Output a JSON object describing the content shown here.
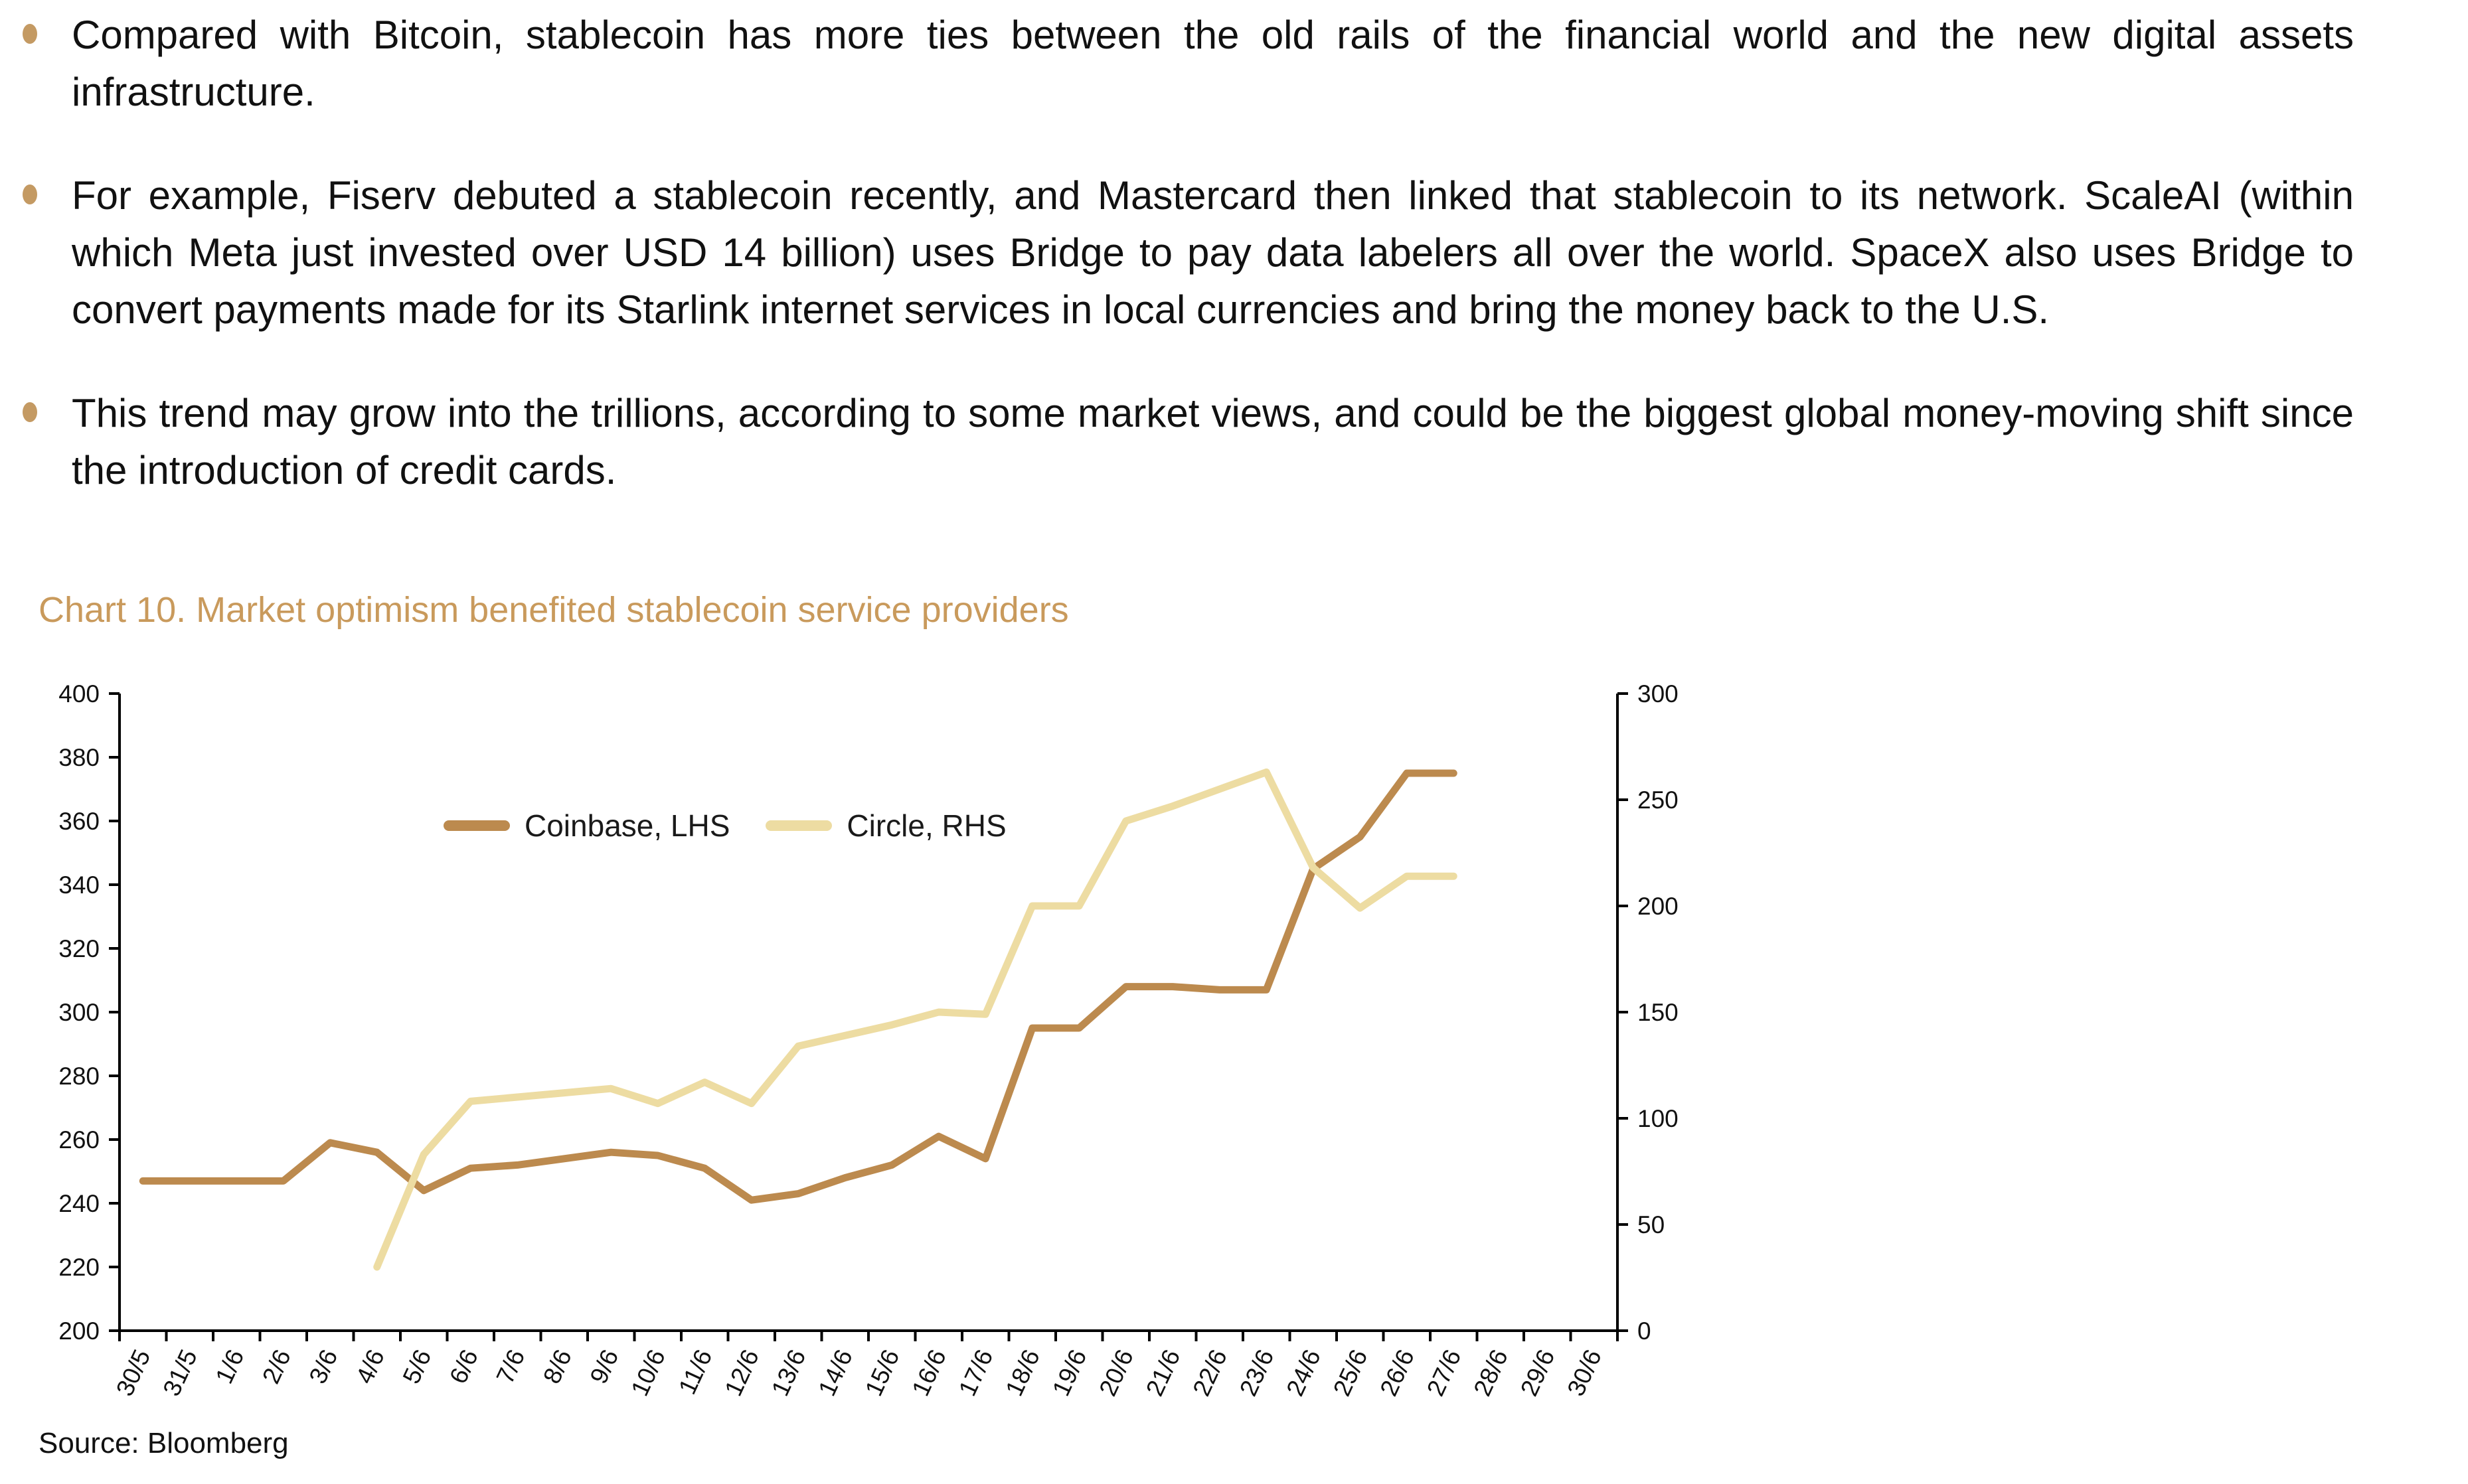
{
  "bullets": [
    {
      "text": "Compared with Bitcoin, stablecoin has more ties between the old rails of the financial world and the new digital assets infrastructure."
    },
    {
      "text": "For example, Fiserv debuted a stablecoin recently, and Mastercard then linked that stablecoin to its network. ScaleAI (within which Meta just invested over USD 14 billion) uses Bridge to pay data labelers all over the world. SpaceX also uses Bridge to convert payments made for its Starlink internet services in local currencies and bring the money back to the U.S."
    },
    {
      "text": "This trend may grow into the trillions, according to some market views, and could be the biggest global money-moving shift since the introduction of credit cards."
    }
  ],
  "chart": {
    "title": "Chart 10. Market optimism benefited stablecoin service providers",
    "source": "Source: Bloomberg",
    "title_color": "#C99A5C",
    "legend": [
      {
        "label": "Coinbase, LHS"
      },
      {
        "label": "Circle, RHS"
      }
    ]
  },
  "chart_data": {
    "type": "line",
    "title": "Chart 10. Market optimism benefited stablecoin service providers",
    "categories": [
      "30/5",
      "31/5",
      "1/6",
      "2/6",
      "3/6",
      "4/6",
      "5/6",
      "6/6",
      "7/6",
      "8/6",
      "9/6",
      "10/6",
      "11/6",
      "12/6",
      "13/6",
      "14/6",
      "15/6",
      "16/6",
      "17/6",
      "18/6",
      "19/6",
      "20/6",
      "21/6",
      "22/6",
      "23/6",
      "24/6",
      "25/6",
      "26/6",
      "27/6",
      "28/6",
      "29/6",
      "30/6"
    ],
    "series": [
      {
        "name": "Coinbase, LHS",
        "axis": "left",
        "color": "#BC8A4E",
        "start_index": 0,
        "values": [
          247,
          247,
          247,
          247,
          259,
          256,
          244,
          251,
          252,
          254,
          256,
          255,
          251,
          241,
          243,
          248,
          252,
          261,
          254,
          295,
          295,
          308,
          308,
          307,
          307,
          345,
          355,
          375,
          375
        ]
      },
      {
        "name": "Circle, RHS",
        "axis": "right",
        "color": "#EDDCA2",
        "start_index": 5,
        "values": [
          30,
          83,
          108,
          110,
          112,
          114,
          107,
          117,
          107,
          134,
          139,
          144,
          150,
          149,
          200,
          200,
          240,
          247,
          255,
          263,
          218,
          199,
          214,
          214
        ]
      }
    ],
    "left_axis": {
      "min": 200,
      "max": 400,
      "step": 20
    },
    "right_axis": {
      "min": 0,
      "max": 300,
      "step": 50
    },
    "grid": false,
    "legend_position": "inside-top-left",
    "source": "Source: Bloomberg"
  }
}
